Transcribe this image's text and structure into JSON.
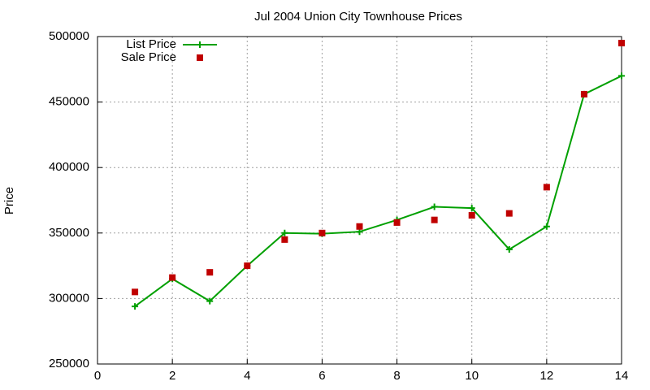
{
  "chart_data": {
    "type": "line",
    "title": "Jul 2004 Union City Townhouse Prices",
    "y_label": "Price",
    "x": [
      1,
      2,
      3,
      4,
      5,
      6,
      7,
      8,
      9,
      10,
      11,
      12,
      13,
      14
    ],
    "series": [
      {
        "name": "List Price",
        "color": "#00a000",
        "style": "linespoints",
        "values": [
          294000,
          315000,
          298000,
          325000,
          350000,
          349500,
          351000,
          360000,
          370000,
          369000,
          337500,
          355000,
          456000,
          470000
        ]
      },
      {
        "name": "Sale Price",
        "color": "#c00000",
        "style": "points",
        "values": [
          305000,
          316000,
          320000,
          325000,
          345000,
          350000,
          355000,
          358000,
          360000,
          363500,
          365000,
          385000,
          456000,
          495000
        ]
      }
    ],
    "xlim": [
      0,
      14
    ],
    "xticks": [
      0,
      2,
      4,
      6,
      8,
      10,
      12,
      14
    ],
    "ylim": [
      250000,
      500000
    ],
    "yticks": [
      250000,
      300000,
      350000,
      400000,
      450000,
      500000
    ],
    "grid": true,
    "legend": "top-left"
  }
}
